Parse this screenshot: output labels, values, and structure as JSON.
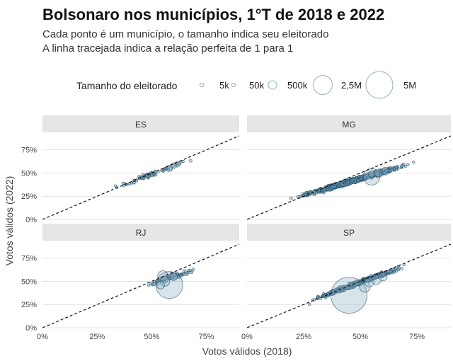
{
  "title": "Bolsonaro nos municípios, 1°T de 2018 e 2022",
  "subtitle_1": "Cada ponto é um município, o tamanho indica seu eleitorado",
  "subtitle_2": "A linha tracejada indica a relação perfeita de 1 para 1",
  "colors": {
    "point_fill": "#8fb3c4",
    "point_stroke": "#1d4e6b",
    "panel_strip": "#e6e6e6",
    "grid": "#e2e2e2",
    "reference_line": "#111111"
  },
  "chart_data": {
    "type": "scatter",
    "facets": [
      "ES",
      "MG",
      "RJ",
      "SP"
    ],
    "xlabel": "Votos válidos (2018)",
    "ylabel": "Votos válidos (2022)",
    "xlim": [
      0,
      0.9
    ],
    "ylim": [
      0,
      0.9
    ],
    "x_ticks": [
      0,
      0.25,
      0.5,
      0.75
    ],
    "y_ticks": [
      0,
      0.25,
      0.5,
      0.75
    ],
    "x_tick_labels": [
      "0%",
      "25%",
      "50%",
      "75%"
    ],
    "y_tick_labels": [
      "0%",
      "25%",
      "50%",
      "75%"
    ],
    "reference_line": {
      "slope": 1,
      "intercept": 0,
      "style": "dashed"
    },
    "size_legend": {
      "title": "Tamanho do eleitorado",
      "items": [
        {
          "label": "5k",
          "value": 5000
        },
        {
          "label": "50k",
          "value": 50000
        },
        {
          "label": "500k",
          "value": 500000
        },
        {
          "label": "2,5M",
          "value": 2500000
        },
        {
          "label": "5M",
          "value": 5000000
        }
      ]
    },
    "panels": [
      {
        "name": "ES",
        "trend": {
          "x_range": [
            0.3,
            0.72
          ],
          "y_at_x0": 0.05,
          "slope": 0.88
        },
        "n_points": 78,
        "large_points": [
          {
            "x": 0.58,
            "y": 0.55,
            "voters": 280000
          },
          {
            "x": 0.6,
            "y": 0.58,
            "voters": 230000
          },
          {
            "x": 0.62,
            "y": 0.6,
            "voters": 180000
          },
          {
            "x": 0.48,
            "y": 0.47,
            "voters": 100000
          }
        ]
      },
      {
        "name": "MG",
        "trend": {
          "x_range": [
            0.18,
            0.75
          ],
          "y_at_x0": 0.08,
          "slope": 0.72
        },
        "n_points": 853,
        "large_points": [
          {
            "x": 0.55,
            "y": 0.46,
            "voters": 1900000
          },
          {
            "x": 0.58,
            "y": 0.5,
            "voters": 450000
          },
          {
            "x": 0.61,
            "y": 0.52,
            "voters": 400000
          },
          {
            "x": 0.55,
            "y": 0.49,
            "voters": 300000
          }
        ]
      },
      {
        "name": "RJ",
        "trend": {
          "x_range": [
            0.45,
            0.72
          ],
          "y_at_x0": 0.12,
          "slope": 0.72
        },
        "n_points": 92,
        "large_points": [
          {
            "x": 0.58,
            "y": 0.46,
            "voters": 5000000
          },
          {
            "x": 0.55,
            "y": 0.56,
            "voters": 700000
          },
          {
            "x": 0.56,
            "y": 0.5,
            "voters": 650000
          },
          {
            "x": 0.54,
            "y": 0.46,
            "voters": 450000
          },
          {
            "x": 0.6,
            "y": 0.55,
            "voters": 400000
          }
        ]
      },
      {
        "name": "SP",
        "trend": {
          "x_range": [
            0.26,
            0.72
          ],
          "y_at_x0": 0.04,
          "slope": 0.9
        },
        "n_points": 645,
        "large_points": [
          {
            "x": 0.45,
            "y": 0.35,
            "voters": 9000000
          },
          {
            "x": 0.52,
            "y": 0.44,
            "voters": 800000
          },
          {
            "x": 0.57,
            "y": 0.52,
            "voters": 700000
          },
          {
            "x": 0.54,
            "y": 0.49,
            "voters": 600000
          },
          {
            "x": 0.6,
            "y": 0.55,
            "voters": 500000
          }
        ]
      }
    ]
  }
}
